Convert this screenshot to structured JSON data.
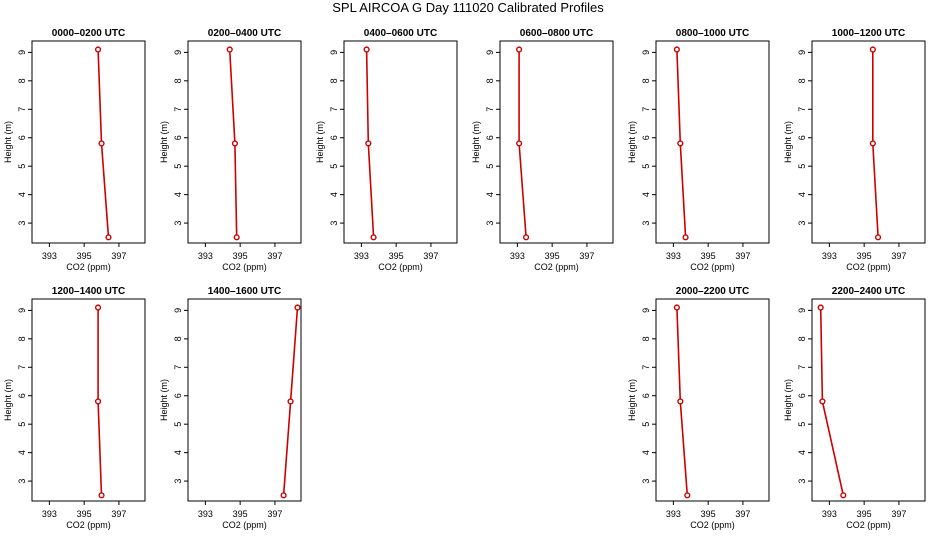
{
  "figure": {
    "title": "SPL AIRCOA G  Day 111020  Calibrated Profiles",
    "line_color": "#cc0000",
    "background": "#ffffff"
  },
  "chart_data": [
    {
      "type": "line",
      "title": "0000–0200 UTC",
      "xlabel": "CO2 (ppm)",
      "ylabel": "Height (m)",
      "xlim": [
        392,
        398.5
      ],
      "ylim": [
        2.3,
        9.4
      ],
      "xticks": [
        393,
        395,
        397
      ],
      "yticks": [
        3,
        4,
        5,
        6,
        7,
        8,
        9
      ],
      "series": [
        {
          "x": [
            396.4,
            396.0,
            395.8
          ],
          "y": [
            2.5,
            5.8,
            9.1
          ]
        }
      ]
    },
    {
      "type": "line",
      "title": "0200–0400 UTC",
      "xlabel": "CO2 (ppm)",
      "ylabel": "Height (m)",
      "xlim": [
        392,
        398.5
      ],
      "ylim": [
        2.3,
        9.4
      ],
      "xticks": [
        393,
        395,
        397
      ],
      "yticks": [
        3,
        4,
        5,
        6,
        7,
        8,
        9
      ],
      "series": [
        {
          "x": [
            394.8,
            394.7,
            394.4
          ],
          "y": [
            2.5,
            5.8,
            9.1
          ]
        }
      ]
    },
    {
      "type": "line",
      "title": "0400–0600 UTC",
      "xlabel": "CO2 (ppm)",
      "ylabel": "Height (m)",
      "xlim": [
        392,
        398.5
      ],
      "ylim": [
        2.3,
        9.4
      ],
      "xticks": [
        393,
        395,
        397
      ],
      "yticks": [
        3,
        4,
        5,
        6,
        7,
        8,
        9
      ],
      "series": [
        {
          "x": [
            393.7,
            393.4,
            393.3
          ],
          "y": [
            2.5,
            5.8,
            9.1
          ]
        }
      ]
    },
    {
      "type": "line",
      "title": "0600–0800 UTC",
      "xlabel": "CO2 (ppm)",
      "ylabel": "Height (m)",
      "xlim": [
        392,
        398.5
      ],
      "ylim": [
        2.3,
        9.4
      ],
      "xticks": [
        393,
        395,
        397
      ],
      "yticks": [
        3,
        4,
        5,
        6,
        7,
        8,
        9
      ],
      "series": [
        {
          "x": [
            393.5,
            393.1,
            393.1
          ],
          "y": [
            2.5,
            5.8,
            9.1
          ]
        }
      ]
    },
    {
      "type": "line",
      "title": "0800–1000 UTC",
      "xlabel": "CO2 (ppm)",
      "ylabel": "Height (m)",
      "xlim": [
        392,
        398.5
      ],
      "ylim": [
        2.3,
        9.4
      ],
      "xticks": [
        393,
        395,
        397
      ],
      "yticks": [
        3,
        4,
        5,
        6,
        7,
        8,
        9
      ],
      "series": [
        {
          "x": [
            393.7,
            393.4,
            393.2
          ],
          "y": [
            2.5,
            5.8,
            9.1
          ]
        }
      ]
    },
    {
      "type": "line",
      "title": "1000–1200 UTC",
      "xlabel": "CO2 (ppm)",
      "ylabel": "Height (m)",
      "xlim": [
        392,
        398.5
      ],
      "ylim": [
        2.3,
        9.4
      ],
      "xticks": [
        393,
        395,
        397
      ],
      "yticks": [
        3,
        4,
        5,
        6,
        7,
        8,
        9
      ],
      "series": [
        {
          "x": [
            395.8,
            395.5,
            395.5
          ],
          "y": [
            2.5,
            5.8,
            9.1
          ]
        }
      ]
    },
    {
      "type": "line",
      "title": "1200–1400 UTC",
      "xlabel": "CO2 (ppm)",
      "ylabel": "Height (m)",
      "xlim": [
        392,
        398.5
      ],
      "ylim": [
        2.3,
        9.4
      ],
      "xticks": [
        393,
        395,
        397
      ],
      "yticks": [
        3,
        4,
        5,
        6,
        7,
        8,
        9
      ],
      "series": [
        {
          "x": [
            396.0,
            395.8,
            395.8
          ],
          "y": [
            2.5,
            5.8,
            9.1
          ]
        }
      ]
    },
    {
      "type": "line",
      "title": "1400–1600 UTC",
      "xlabel": "CO2 (ppm)",
      "ylabel": "Height (m)",
      "xlim": [
        392,
        398.5
      ],
      "ylim": [
        2.3,
        9.4
      ],
      "xticks": [
        393,
        395,
        397
      ],
      "yticks": [
        3,
        4,
        5,
        6,
        7,
        8,
        9
      ],
      "series": [
        {
          "x": [
            397.5,
            397.9,
            398.3
          ],
          "y": [
            2.5,
            5.8,
            9.1
          ]
        }
      ]
    },
    {
      "type": "line",
      "title": "2000–2200 UTC",
      "xlabel": "CO2 (ppm)",
      "ylabel": "Height (m)",
      "xlim": [
        392,
        398.5
      ],
      "ylim": [
        2.3,
        9.4
      ],
      "xticks": [
        393,
        395,
        397
      ],
      "yticks": [
        3,
        4,
        5,
        6,
        7,
        8,
        9
      ],
      "series": [
        {
          "x": [
            393.8,
            393.4,
            393.2
          ],
          "y": [
            2.5,
            5.8,
            9.1
          ]
        }
      ]
    },
    {
      "type": "line",
      "title": "2200–2400 UTC",
      "xlabel": "CO2 (ppm)",
      "ylabel": "Height (m)",
      "xlim": [
        392,
        398.5
      ],
      "ylim": [
        2.3,
        9.4
      ],
      "xticks": [
        393,
        395,
        397
      ],
      "yticks": [
        3,
        4,
        5,
        6,
        7,
        8,
        9
      ],
      "series": [
        {
          "x": [
            393.8,
            392.6,
            392.5
          ],
          "y": [
            2.5,
            5.8,
            9.1
          ]
        }
      ]
    }
  ]
}
